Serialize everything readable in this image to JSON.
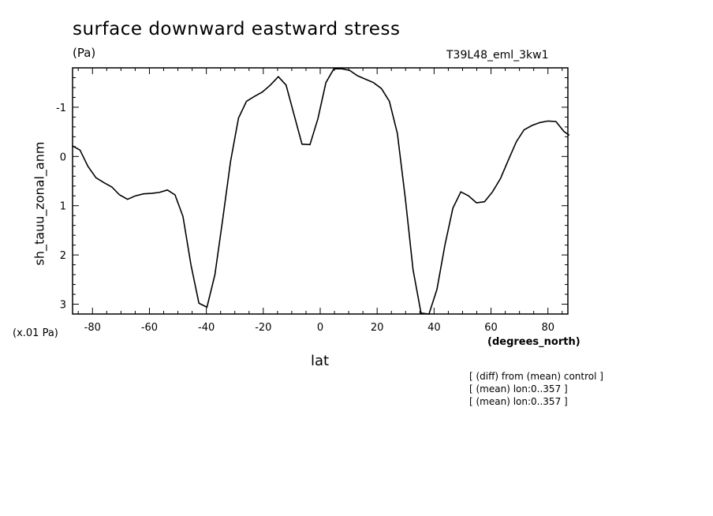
{
  "chart_data": {
    "type": "line",
    "title": "surface downward eastward stress",
    "units_label": "(Pa)",
    "run_id": "T39L48_eml_3kw1",
    "ylabel": "sh_tauu_zonal_anm",
    "xlabel": "lat",
    "x_unit_label": "(degrees_north)",
    "y_scale_label": "(x.01 Pa)",
    "notes": [
      "[ (diff) from (mean) control ]",
      "[ (mean) lon:0..357 ]",
      "[ (mean) lon:0..357 ]"
    ],
    "xlim": [
      -87,
      87
    ],
    "ylim": [
      3.2,
      -1.8
    ],
    "y_axis_inverted": true,
    "x_ticks": [
      -80,
      -60,
      -40,
      -20,
      0,
      20,
      40,
      60,
      80
    ],
    "x_tick_labels": [
      "-80",
      "-60",
      "-40",
      "-20",
      "0",
      "20",
      "40",
      "60",
      "80"
    ],
    "y_ticks": [
      -1,
      0,
      1,
      2,
      3
    ],
    "y_tick_labels": [
      "-1",
      "0",
      "1",
      "2",
      "3"
    ],
    "grid": false,
    "series": [
      {
        "x": [
          -87.2,
          -84.4,
          -81.6,
          -78.8,
          -76.0,
          -73.2,
          -70.5,
          -67.7,
          -64.9,
          -62.1,
          -59.3,
          -56.5,
          -53.7,
          -51.0,
          -48.2,
          -45.4,
          -42.6,
          -39.8,
          -37.0,
          -34.2,
          -31.5,
          -28.7,
          -25.9,
          -23.1,
          -20.3,
          -17.5,
          -14.7,
          -12.0,
          -9.2,
          -6.4,
          -3.6,
          -0.8,
          2.0,
          4.8,
          7.6,
          10.3,
          13.1,
          15.9,
          18.7,
          21.5,
          24.3,
          27.1,
          29.9,
          32.6,
          35.4,
          38.2,
          41.0,
          43.8,
          46.6,
          49.4,
          52.1,
          54.9,
          57.7,
          60.5,
          63.3,
          66.1,
          68.9,
          71.6,
          74.4,
          77.2,
          80.0,
          82.8,
          85.6,
          87.5
        ],
        "y": [
          -0.22,
          -0.13,
          0.2,
          0.43,
          0.53,
          0.62,
          0.78,
          0.87,
          0.8,
          0.76,
          0.75,
          0.73,
          0.68,
          0.78,
          1.22,
          2.2,
          2.98,
          3.06,
          2.4,
          1.25,
          0.1,
          -0.78,
          -1.12,
          -1.22,
          -1.31,
          -1.45,
          -1.62,
          -1.45,
          -0.85,
          -0.25,
          -0.24,
          -0.77,
          -1.5,
          -1.78,
          -1.78,
          -1.75,
          -1.64,
          -1.57,
          -1.5,
          -1.38,
          -1.12,
          -0.47,
          0.85,
          2.3,
          3.18,
          3.2,
          2.7,
          1.8,
          1.05,
          0.72,
          0.8,
          0.94,
          0.92,
          0.72,
          0.45,
          0.07,
          -0.3,
          -0.54,
          -0.63,
          -0.69,
          -0.72,
          -0.71,
          -0.51,
          -0.43
        ]
      }
    ]
  }
}
